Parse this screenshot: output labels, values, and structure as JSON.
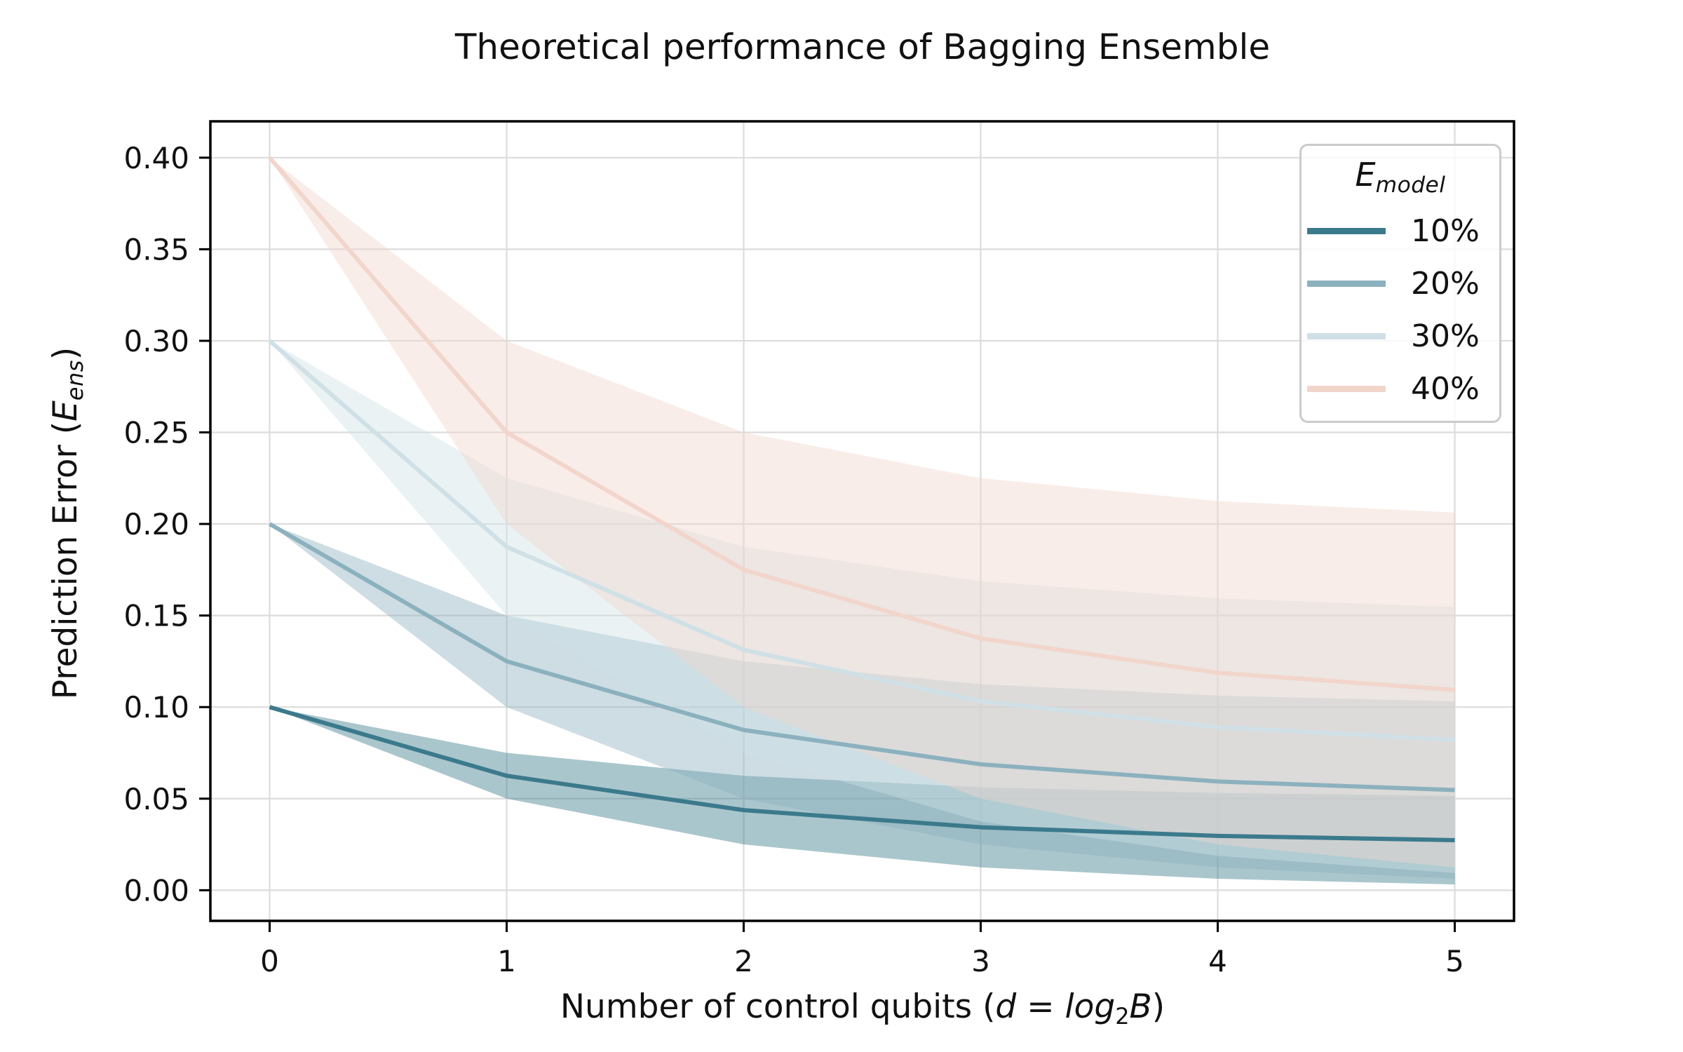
{
  "figure": {
    "title": "Theoretical performance of Bagging Ensemble"
  },
  "axis_labels": {
    "xlabel_plain": "Number of control qubits (d = log₂B)",
    "ylabel_plain": "Prediction Error (Eₑₙₛ)",
    "xlabel_parts": {
      "prefix": "Number of control qubits (",
      "var_d": "d",
      "eq": " = ",
      "log": "log",
      "log_sub": "2",
      "var_B": "B",
      "suffix": ")"
    },
    "ylabel_parts": {
      "prefix": "Prediction Error (",
      "var_E": "E",
      "sub": "ens",
      "suffix": ")"
    }
  },
  "legend": {
    "title_var": "E",
    "title_sub": "model",
    "entries": [
      "10%",
      "20%",
      "30%",
      "40%"
    ]
  },
  "chart_data": {
    "type": "line",
    "title": "Theoretical performance of Bagging Ensemble",
    "xlabel": "Number of control qubits (d = log₂B)",
    "ylabel": "Prediction Error (E_ens)",
    "x": [
      0,
      1,
      2,
      3,
      4,
      5
    ],
    "xlim": [
      -0.25,
      5.25
    ],
    "ylim": [
      -0.016719,
      0.419844
    ],
    "grid": true,
    "grid_color": "#dcdcdc",
    "spine_color": "#000000",
    "band_opacity": 0.43,
    "legend_position": "upper right",
    "legend_title": "E_model",
    "xtick_labels": [
      "0",
      "1",
      "2",
      "3",
      "4",
      "5"
    ],
    "ytick_values": [
      0.0,
      0.05,
      0.1,
      0.15,
      0.2,
      0.25,
      0.3,
      0.35,
      0.4
    ],
    "ytick_labels": [
      "0.00",
      "0.05",
      "0.10",
      "0.15",
      "0.20",
      "0.25",
      "0.30",
      "0.35",
      "0.40"
    ],
    "series": [
      {
        "name": "10%",
        "color": "#3b7a8c",
        "mean": [
          0.1,
          0.0625,
          0.04375,
          0.034375,
          0.0296875,
          0.02734375
        ],
        "upper": [
          0.1,
          0.075,
          0.0625,
          0.05625,
          0.053125,
          0.0515625
        ],
        "lower": [
          0.1,
          0.05,
          0.025,
          0.0125,
          0.00625,
          0.003125
        ]
      },
      {
        "name": "20%",
        "color": "#8cb1be",
        "mean": [
          0.2,
          0.125,
          0.0875,
          0.06875,
          0.059375,
          0.0546875
        ],
        "upper": [
          0.2,
          0.15,
          0.125,
          0.1125,
          0.10625,
          0.103125
        ],
        "lower": [
          0.2,
          0.1,
          0.05,
          0.025,
          0.0125,
          0.00625
        ]
      },
      {
        "name": "30%",
        "color": "#cfe0e6",
        "mean": [
          0.3,
          0.1875,
          0.13125,
          0.103125,
          0.0890625,
          0.08203125
        ],
        "upper": [
          0.3,
          0.225,
          0.1875,
          0.16875,
          0.159375,
          0.1546875
        ],
        "lower": [
          0.3,
          0.15,
          0.075,
          0.0375,
          0.01875,
          0.009375
        ]
      },
      {
        "name": "40%",
        "color": "#f2d5cb",
        "mean": [
          0.4,
          0.25,
          0.175,
          0.1375,
          0.11875,
          0.109375
        ],
        "upper": [
          0.4,
          0.3,
          0.25,
          0.225,
          0.2125,
          0.20625
        ],
        "lower": [
          0.4,
          0.2,
          0.1,
          0.05,
          0.025,
          0.0125
        ]
      }
    ]
  }
}
